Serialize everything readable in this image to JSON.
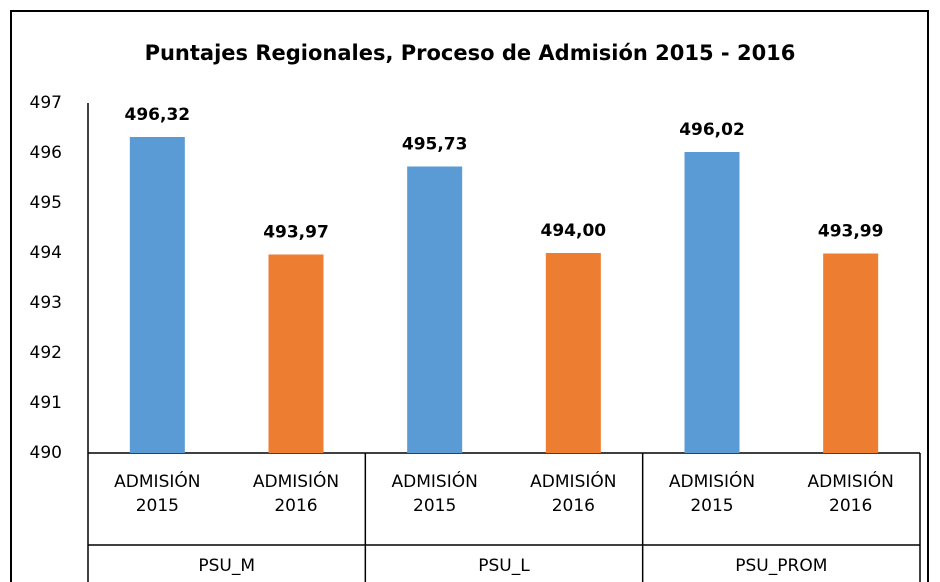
{
  "chart_data": {
    "type": "bar",
    "title": "Puntajes Regionales,  Proceso de Admisión 2015 - 2016",
    "groups": [
      "PSU_M",
      "PSU_L",
      "PSU_PROM"
    ],
    "series": [
      {
        "name": "ADMISIÓN 2015",
        "color": "#5b9bd5",
        "values": [
          496.32,
          495.73,
          496.02
        ],
        "value_labels": [
          "496,32",
          "495,73",
          "496,02"
        ]
      },
      {
        "name": "ADMISIÓN 2016",
        "color": "#ed7d31",
        "values": [
          493.97,
          494.0,
          493.99
        ],
        "value_labels": [
          "493,97",
          "494,00",
          "493,99"
        ]
      }
    ],
    "ylim": [
      490,
      497
    ],
    "yticks": [
      490,
      491,
      492,
      493,
      494,
      495,
      496,
      497
    ],
    "grid": false
  }
}
